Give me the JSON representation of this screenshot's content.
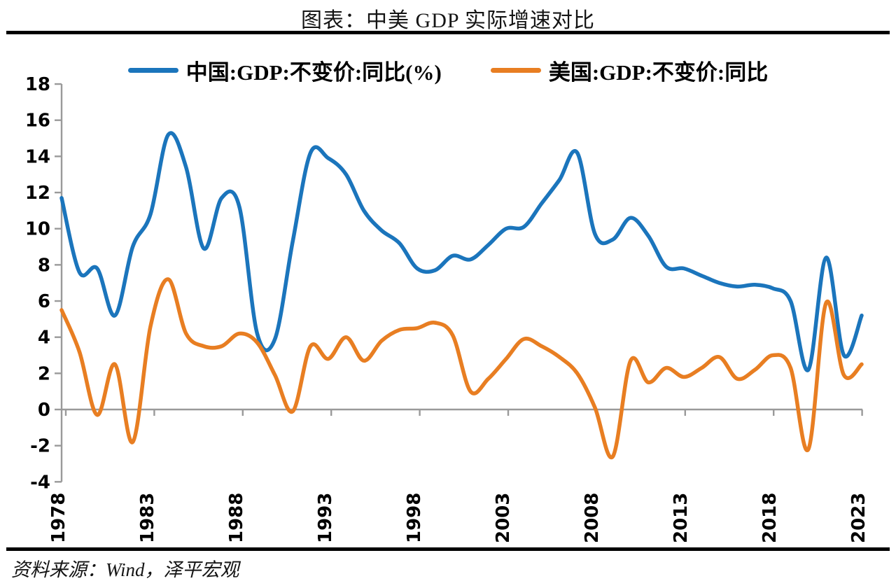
{
  "header": {
    "title": "图表：中美 GDP 实际增速对比"
  },
  "legend": {
    "items": [
      {
        "label": "中国:GDP:不变价:同比(%)",
        "color": "#1B75BC"
      },
      {
        "label": "美国:GDP:不变价:同比",
        "color": "#E87E22"
      }
    ]
  },
  "footer": {
    "source": "资料来源：Wind，泽平宏观"
  },
  "chart_data": {
    "type": "line",
    "title": "图表：中美 GDP 实际增速对比",
    "xlabel": "",
    "ylabel": "",
    "x": [
      1978,
      1979,
      1980,
      1981,
      1982,
      1983,
      1984,
      1985,
      1986,
      1987,
      1988,
      1989,
      1990,
      1991,
      1992,
      1993,
      1994,
      1995,
      1996,
      1997,
      1998,
      1999,
      2000,
      2001,
      2002,
      2003,
      2004,
      2005,
      2006,
      2007,
      2008,
      2009,
      2010,
      2011,
      2012,
      2013,
      2014,
      2015,
      2016,
      2017,
      2018,
      2019,
      2020,
      2021,
      2022,
      2023
    ],
    "series": [
      {
        "name": "中国:GDP:不变价:同比(%)",
        "color": "#1B75BC",
        "values": [
          11.7,
          7.6,
          7.8,
          5.2,
          9.0,
          10.8,
          15.2,
          13.4,
          8.9,
          11.7,
          11.2,
          4.2,
          3.9,
          9.3,
          14.2,
          13.9,
          13.0,
          11.0,
          9.9,
          9.2,
          7.8,
          7.7,
          8.5,
          8.3,
          9.1,
          10.0,
          10.1,
          11.4,
          12.7,
          14.2,
          9.7,
          9.4,
          10.6,
          9.6,
          7.9,
          7.8,
          7.4,
          7.0,
          6.8,
          6.9,
          6.7,
          6.0,
          2.2,
          8.4,
          3.0,
          5.2
        ]
      },
      {
        "name": "美国:GDP:不变价:同比",
        "color": "#E87E22",
        "values": [
          5.5,
          3.2,
          -0.3,
          2.5,
          -1.8,
          4.6,
          7.2,
          4.2,
          3.5,
          3.5,
          4.2,
          3.7,
          1.9,
          -0.1,
          3.5,
          2.8,
          4.0,
          2.7,
          3.8,
          4.4,
          4.5,
          4.8,
          4.1,
          1.0,
          1.7,
          2.8,
          3.9,
          3.5,
          2.9,
          2.0,
          0.1,
          -2.6,
          2.7,
          1.5,
          2.3,
          1.8,
          2.3,
          2.9,
          1.7,
          2.2,
          3.0,
          2.3,
          -2.2,
          5.9,
          1.9,
          2.5
        ]
      }
    ],
    "ylim": [
      -4,
      18
    ],
    "y_ticks": [
      18,
      16,
      14,
      12,
      10,
      8,
      6,
      4,
      2,
      0,
      -2,
      -4
    ],
    "x_tick_years": [
      1978,
      1983,
      1988,
      1993,
      1998,
      2003,
      2008,
      2013,
      2018,
      2023
    ],
    "x_tick_label_rotation": -90,
    "smoothed": true,
    "grid": false,
    "legend_position": "top",
    "axis_color": "#9a9a9a"
  }
}
